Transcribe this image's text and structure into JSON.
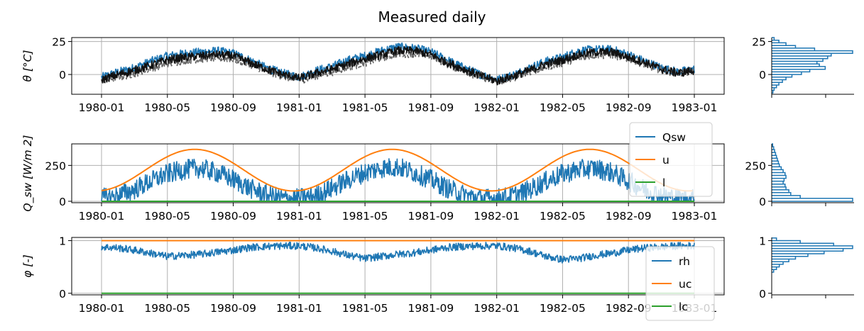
{
  "figure": {
    "title": "Measured daily"
  },
  "colors": {
    "blue": "#1f77b4",
    "orange": "#ff7f0e",
    "green": "#2ca02c",
    "gray": "#666666",
    "black": "#111111",
    "grid": "#b0b0b0"
  },
  "x_ticks": [
    "1980-01",
    "1980-05",
    "1980-09",
    "1981-01",
    "1981-05",
    "1981-09",
    "1982-01",
    "1982-05",
    "1982-09",
    "1983-01"
  ],
  "chart_data": [
    {
      "type": "line",
      "panel": "temperature",
      "ylabel": "θ [°C]",
      "x_range": [
        "1980-01-01",
        "1983-01-01"
      ],
      "ylim": [
        -15,
        28
      ],
      "yticks": [
        "25",
        "0"
      ],
      "grid": true,
      "series": [
        {
          "color": "#1f77b4",
          "style": "solid",
          "points": [
            [
              "1980-01-01",
              -2
            ],
            [
              "1980-02-01",
              2
            ],
            [
              "1980-03-01",
              5
            ],
            [
              "1980-04-01",
              10
            ],
            [
              "1980-05-01",
              14
            ],
            [
              "1980-06-01",
              16
            ],
            [
              "1980-07-01",
              17
            ],
            [
              "1980-08-01",
              18
            ],
            [
              "1980-09-01",
              16
            ],
            [
              "1980-10-01",
              11
            ],
            [
              "1980-11-01",
              5
            ],
            [
              "1980-12-01",
              1
            ],
            [
              "1981-01-01",
              -2
            ],
            [
              "1981-02-01",
              3
            ],
            [
              "1981-03-01",
              6
            ],
            [
              "1981-04-01",
              11
            ],
            [
              "1981-05-01",
              14
            ],
            [
              "1981-06-01",
              18
            ],
            [
              "1981-07-01",
              21
            ],
            [
              "1981-08-01",
              20
            ],
            [
              "1981-09-01",
              17
            ],
            [
              "1981-10-01",
              11
            ],
            [
              "1981-11-01",
              5
            ],
            [
              "1981-12-01",
              0
            ],
            [
              "1982-01-01",
              -4
            ],
            [
              "1982-02-01",
              0
            ],
            [
              "1982-03-01",
              5
            ],
            [
              "1982-04-01",
              10
            ],
            [
              "1982-05-01",
              13
            ],
            [
              "1982-06-01",
              18
            ],
            [
              "1982-07-01",
              19
            ],
            [
              "1982-08-01",
              19
            ],
            [
              "1982-09-01",
              15
            ],
            [
              "1982-10-01",
              10
            ],
            [
              "1982-11-01",
              5
            ],
            [
              "1982-12-01",
              2
            ],
            [
              "1982-12-31",
              4
            ]
          ]
        },
        {
          "color": "#666666",
          "style": "dashed",
          "points": [
            [
              "1980-01-01",
              -5
            ],
            [
              "1980-02-01",
              -2
            ],
            [
              "1980-03-01",
              1
            ],
            [
              "1980-04-01",
              5
            ],
            [
              "1980-05-01",
              8
            ],
            [
              "1980-06-01",
              11
            ],
            [
              "1980-07-01",
              12
            ],
            [
              "1980-08-01",
              13
            ],
            [
              "1980-09-01",
              12
            ],
            [
              "1980-10-01",
              8
            ],
            [
              "1980-11-01",
              3
            ],
            [
              "1980-12-01",
              -1
            ],
            [
              "1981-01-01",
              -4
            ],
            [
              "1981-02-01",
              -1
            ],
            [
              "1981-03-01",
              2
            ],
            [
              "1981-04-01",
              6
            ],
            [
              "1981-05-01",
              9
            ],
            [
              "1981-06-01",
              13
            ],
            [
              "1981-07-01",
              16
            ],
            [
              "1981-08-01",
              16
            ],
            [
              "1981-09-01",
              14
            ],
            [
              "1981-10-01",
              8
            ],
            [
              "1981-11-01",
              3
            ],
            [
              "1981-12-01",
              -2
            ],
            [
              "1982-01-01",
              -6
            ],
            [
              "1982-02-01",
              -2
            ],
            [
              "1982-03-01",
              2
            ],
            [
              "1982-04-01",
              6
            ],
            [
              "1982-05-01",
              9
            ],
            [
              "1982-06-01",
              13
            ],
            [
              "1982-07-01",
              15
            ],
            [
              "1982-08-01",
              15
            ],
            [
              "1982-09-01",
              12
            ],
            [
              "1982-10-01",
              8
            ],
            [
              "1982-11-01",
              3
            ],
            [
              "1982-12-01",
              1
            ],
            [
              "1982-12-31",
              3
            ]
          ]
        },
        {
          "color": "#111111",
          "style": "solid",
          "points": [
            [
              "1980-01-01",
              -4
            ],
            [
              "1980-02-01",
              0
            ],
            [
              "1980-03-01",
              3
            ],
            [
              "1980-04-01",
              7
            ],
            [
              "1980-05-01",
              11
            ],
            [
              "1980-06-01",
              13
            ],
            [
              "1980-07-01",
              14
            ],
            [
              "1980-08-01",
              15
            ],
            [
              "1980-09-01",
              14
            ],
            [
              "1980-10-01",
              9
            ],
            [
              "1980-11-01",
              4
            ],
            [
              "1980-12-01",
              0
            ],
            [
              "1981-01-01",
              -3
            ],
            [
              "1981-02-01",
              1
            ],
            [
              "1981-03-01",
              4
            ],
            [
              "1981-04-01",
              8
            ],
            [
              "1981-05-01",
              12
            ],
            [
              "1981-06-01",
              15
            ],
            [
              "1981-07-01",
              18
            ],
            [
              "1981-08-01",
              18
            ],
            [
              "1981-09-01",
              15
            ],
            [
              "1981-10-01",
              9
            ],
            [
              "1981-11-01",
              4
            ],
            [
              "1981-12-01",
              -1
            ],
            [
              "1982-01-01",
              -5
            ],
            [
              "1982-02-01",
              -1
            ],
            [
              "1982-03-01",
              3
            ],
            [
              "1982-04-01",
              8
            ],
            [
              "1982-05-01",
              11
            ],
            [
              "1982-06-01",
              15
            ],
            [
              "1982-07-01",
              17
            ],
            [
              "1982-08-01",
              17
            ],
            [
              "1982-09-01",
              13
            ],
            [
              "1982-10-01",
              9
            ],
            [
              "1982-11-01",
              4
            ],
            [
              "1982-12-01",
              1
            ],
            [
              "1982-12-31",
              3
            ]
          ]
        }
      ],
      "histogram": {
        "ylim": [
          -15,
          28
        ],
        "bins": [
          [
            -14,
            1
          ],
          [
            -12,
            2
          ],
          [
            -10,
            4
          ],
          [
            -8,
            6
          ],
          [
            -6,
            9
          ],
          [
            -4,
            12
          ],
          [
            -2,
            17
          ],
          [
            0,
            25
          ],
          [
            2,
            32
          ],
          [
            4,
            45
          ],
          [
            6,
            40
          ],
          [
            8,
            38
          ],
          [
            10,
            43
          ],
          [
            12,
            47
          ],
          [
            14,
            50
          ],
          [
            16,
            68
          ],
          [
            18,
            36
          ],
          [
            20,
            20
          ],
          [
            22,
            12
          ],
          [
            24,
            6
          ],
          [
            26,
            2
          ]
        ]
      }
    },
    {
      "type": "line",
      "panel": "shortwave",
      "ylabel": "Q_sw [W/m 2]",
      "x_range": [
        "1980-01-01",
        "1983-01-01"
      ],
      "ylim": [
        -10,
        400
      ],
      "yticks": [
        "250",
        "0"
      ],
      "grid": true,
      "legend": {
        "position": "top-right",
        "entries": [
          "Qsw",
          "u",
          "l"
        ]
      },
      "series": [
        {
          "name": "Qsw",
          "color": "#1f77b4",
          "points": [
            [
              "1980-01-01",
              20
            ],
            [
              "1980-02-01",
              40
            ],
            [
              "1980-03-01",
              80
            ],
            [
              "1980-04-01",
              140
            ],
            [
              "1980-05-01",
              190
            ],
            [
              "1980-06-01",
              220
            ],
            [
              "1980-07-01",
              230
            ],
            [
              "1980-08-01",
              200
            ],
            [
              "1980-09-01",
              150
            ],
            [
              "1980-10-01",
              90
            ],
            [
              "1980-11-01",
              45
            ],
            [
              "1980-12-01",
              20
            ],
            [
              "1981-01-01",
              20
            ],
            [
              "1981-02-01",
              40
            ],
            [
              "1981-03-01",
              90
            ],
            [
              "1981-04-01",
              150
            ],
            [
              "1981-05-01",
              200
            ],
            [
              "1981-06-01",
              230
            ],
            [
              "1981-07-01",
              240
            ],
            [
              "1981-08-01",
              200
            ],
            [
              "1981-09-01",
              150
            ],
            [
              "1981-10-01",
              90
            ],
            [
              "1981-11-01",
              45
            ],
            [
              "1981-12-01",
              20
            ],
            [
              "1982-01-01",
              20
            ],
            [
              "1982-02-01",
              40
            ],
            [
              "1982-03-01",
              80
            ],
            [
              "1982-04-01",
              140
            ],
            [
              "1982-05-01",
              190
            ],
            [
              "1982-06-01",
              220
            ],
            [
              "1982-07-01",
              230
            ],
            [
              "1982-08-01",
              200
            ],
            [
              "1982-09-01",
              140
            ],
            [
              "1982-10-01",
              80
            ],
            [
              "1982-11-01",
              40
            ],
            [
              "1982-12-01",
              20
            ],
            [
              "1982-12-31",
              15
            ]
          ]
        },
        {
          "name": "u",
          "color": "#ff7f0e",
          "model": {
            "mean": 217,
            "amplitude": 145,
            "peak_day": 172
          }
        },
        {
          "name": "l",
          "color": "#2ca02c",
          "constant": 0
        }
      ],
      "histogram": {
        "ylim": [
          -10,
          400
        ],
        "bins": [
          [
            0,
            85
          ],
          [
            20,
            30
          ],
          [
            40,
            20
          ],
          [
            60,
            18
          ],
          [
            80,
            15
          ],
          [
            100,
            14
          ],
          [
            120,
            12
          ],
          [
            140,
            13
          ],
          [
            160,
            15
          ],
          [
            180,
            14
          ],
          [
            200,
            12
          ],
          [
            220,
            10
          ],
          [
            240,
            8
          ],
          [
            260,
            7
          ],
          [
            280,
            6
          ],
          [
            300,
            5
          ],
          [
            320,
            4
          ],
          [
            340,
            3
          ],
          [
            360,
            2
          ],
          [
            380,
            1
          ]
        ]
      }
    },
    {
      "type": "line",
      "panel": "humidity",
      "ylabel": "φ [-]",
      "x_range": [
        "1980-01-01",
        "1983-01-01"
      ],
      "ylim": [
        -0.03,
        1.06
      ],
      "yticks": [
        "1",
        "0"
      ],
      "grid": true,
      "legend": {
        "position": "right",
        "entries": [
          "rh",
          "uc",
          "lc"
        ]
      },
      "series": [
        {
          "name": "rh",
          "color": "#1f77b4",
          "points": [
            [
              "1980-01-01",
              0.88
            ],
            [
              "1980-02-01",
              0.86
            ],
            [
              "1980-03-01",
              0.82
            ],
            [
              "1980-04-01",
              0.76
            ],
            [
              "1980-05-01",
              0.7
            ],
            [
              "1980-06-01",
              0.72
            ],
            [
              "1980-07-01",
              0.74
            ],
            [
              "1980-08-01",
              0.78
            ],
            [
              "1980-09-01",
              0.82
            ],
            [
              "1980-10-01",
              0.87
            ],
            [
              "1980-11-01",
              0.89
            ],
            [
              "1980-12-01",
              0.9
            ],
            [
              "1981-01-01",
              0.9
            ],
            [
              "1981-02-01",
              0.86
            ],
            [
              "1981-03-01",
              0.8
            ],
            [
              "1981-04-01",
              0.72
            ],
            [
              "1981-05-01",
              0.66
            ],
            [
              "1981-06-01",
              0.7
            ],
            [
              "1981-07-01",
              0.74
            ],
            [
              "1981-08-01",
              0.77
            ],
            [
              "1981-09-01",
              0.82
            ],
            [
              "1981-10-01",
              0.87
            ],
            [
              "1981-11-01",
              0.89
            ],
            [
              "1981-12-01",
              0.9
            ],
            [
              "1982-01-01",
              0.9
            ],
            [
              "1982-02-01",
              0.86
            ],
            [
              "1982-03-01",
              0.8
            ],
            [
              "1982-04-01",
              0.7
            ],
            [
              "1982-05-01",
              0.64
            ],
            [
              "1982-06-01",
              0.66
            ],
            [
              "1982-07-01",
              0.72
            ],
            [
              "1982-08-01",
              0.76
            ],
            [
              "1982-09-01",
              0.82
            ],
            [
              "1982-10-01",
              0.86
            ],
            [
              "1982-11-01",
              0.88
            ],
            [
              "1982-12-01",
              0.9
            ],
            [
              "1982-12-31",
              0.9
            ]
          ]
        },
        {
          "name": "uc",
          "color": "#ff7f0e",
          "constant": 1
        },
        {
          "name": "lc",
          "color": "#2ca02c",
          "constant": 0
        }
      ],
      "histogram": {
        "ylim": [
          -0.03,
          1.06
        ],
        "bins": [
          [
            0.4,
            2
          ],
          [
            0.45,
            5
          ],
          [
            0.5,
            8
          ],
          [
            0.55,
            12
          ],
          [
            0.6,
            18
          ],
          [
            0.65,
            25
          ],
          [
            0.7,
            38
          ],
          [
            0.75,
            55
          ],
          [
            0.8,
            75
          ],
          [
            0.85,
            85
          ],
          [
            0.9,
            65
          ],
          [
            0.95,
            30
          ],
          [
            1.0,
            5
          ]
        ]
      }
    }
  ]
}
